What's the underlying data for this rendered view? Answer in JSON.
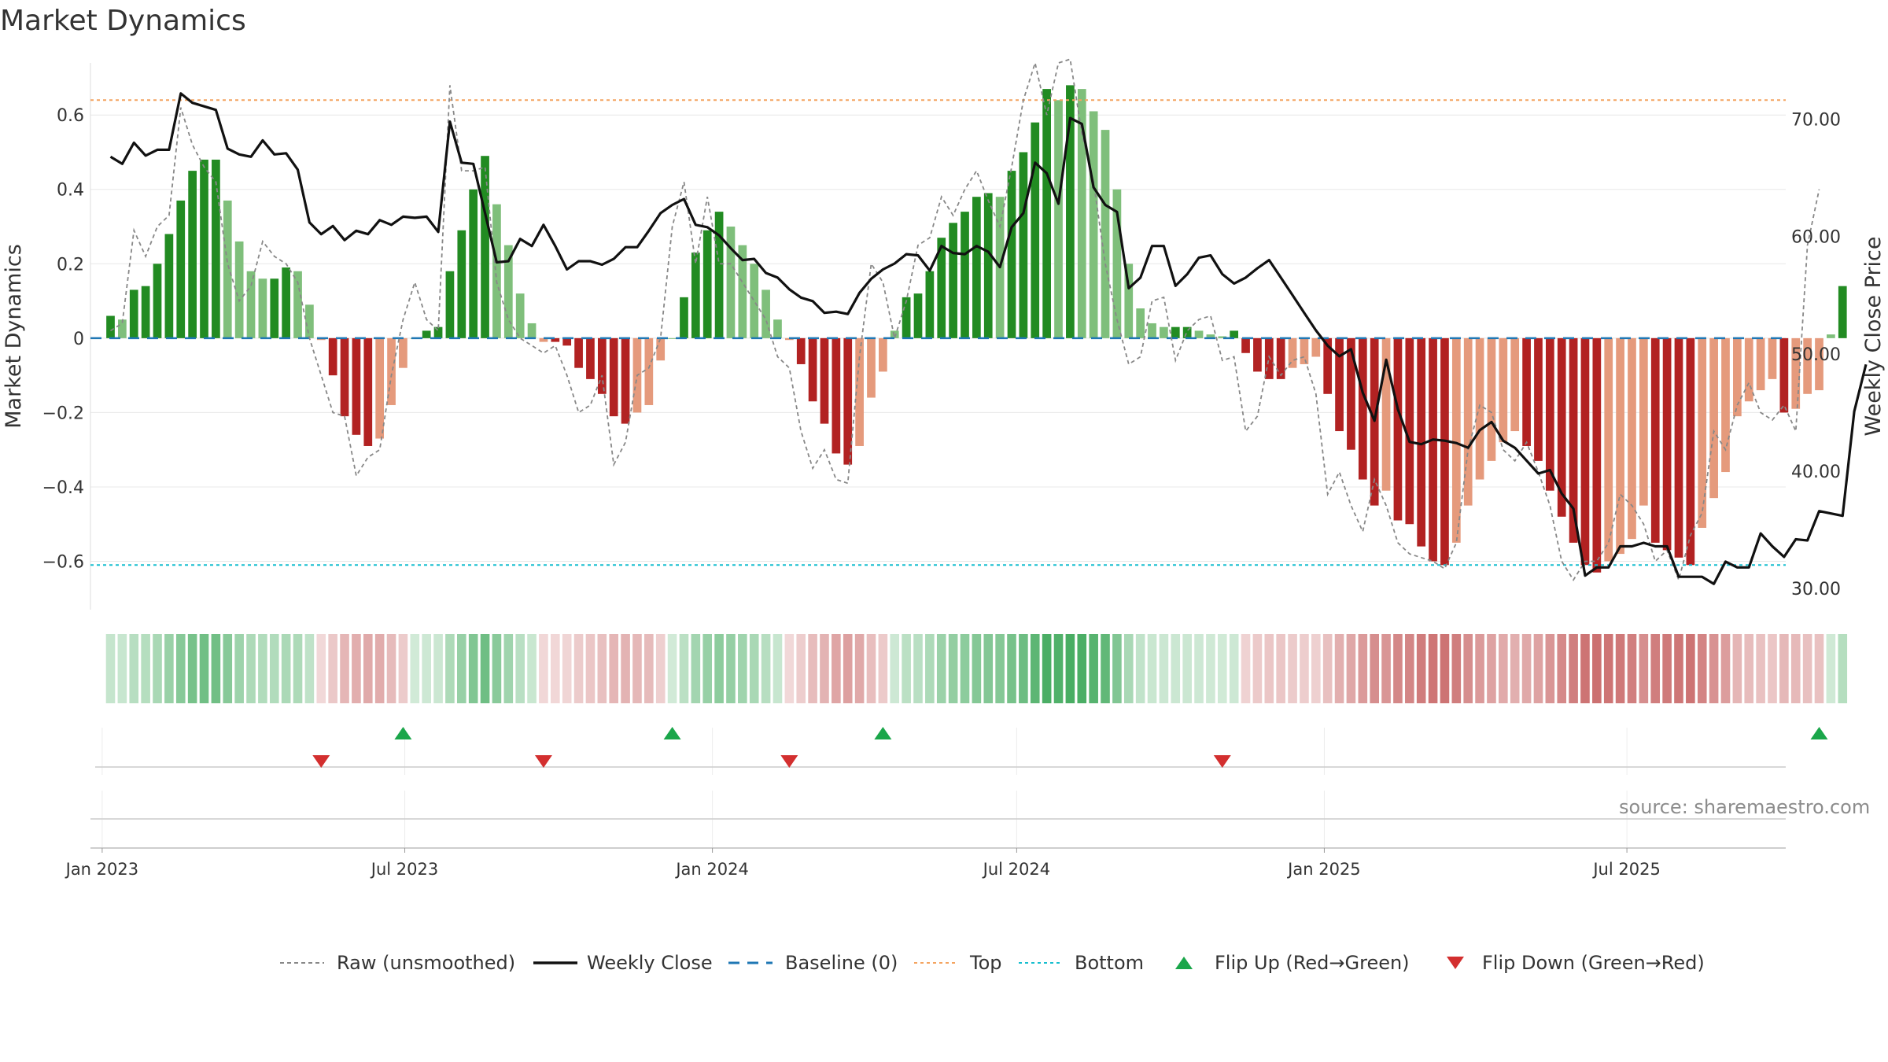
{
  "title": "Market Dynamics",
  "source": "source: sharemaestro.com",
  "colors": {
    "green_dark": "#228b22",
    "green_light": "#7fbf7b",
    "red_dark": "#b22222",
    "red_light": "#e59a7c",
    "close": "#111111",
    "raw": "#888888",
    "baseline": "#1f77b4",
    "top": "#f4a460",
    "bottom": "#17becf",
    "flip_up": "#1aa64a",
    "flip_down": "#d32f2f"
  },
  "chart_data": {
    "type": "bar",
    "x_start": "2023-01-06",
    "x_interval": "weekly",
    "x_range": [
      "2022-12-25",
      "2025-10-04"
    ],
    "x_ticks": [
      {
        "date": "2023-01-01",
        "label": "Jan 2023"
      },
      {
        "date": "2023-07-01",
        "label": "Jul 2023"
      },
      {
        "date": "2024-01-01",
        "label": "Jan 2024"
      },
      {
        "date": "2024-07-01",
        "label": "Jul 2024"
      },
      {
        "date": "2025-01-01",
        "label": "Jan 2025"
      },
      {
        "date": "2025-07-01",
        "label": "Jul 2025"
      }
    ],
    "left_axis": {
      "label": "Market Dynamics",
      "range": [
        -0.73,
        0.74
      ],
      "ticks": [
        {
          "v": 0.6,
          "label": "0.6"
        },
        {
          "v": 0.4,
          "label": "0.4"
        },
        {
          "v": 0.2,
          "label": "0.2"
        },
        {
          "v": 0,
          "label": "0"
        },
        {
          "v": -0.2,
          "label": "−0.2"
        },
        {
          "v": -0.4,
          "label": "−0.4"
        },
        {
          "v": -0.6,
          "label": "−0.6"
        }
      ]
    },
    "right_axis": {
      "label": "Weekly Close Price",
      "range": [
        28.2,
        74.8
      ],
      "ticks": [
        {
          "v": 70,
          "label": "70.00"
        },
        {
          "v": 60,
          "label": "60.00"
        },
        {
          "v": 50,
          "label": "50.00"
        },
        {
          "v": 40,
          "label": "40.00"
        },
        {
          "v": 30,
          "label": "30.00"
        }
      ]
    },
    "top_level": 0.64,
    "bottom_level": -0.61,
    "baseline": 0,
    "grid": true,
    "legend_position": "bottom-center",
    "series": [
      {
        "name": "Market Dynamics",
        "type": "bar",
        "values": [
          0.06,
          0.05,
          0.13,
          0.14,
          0.2,
          0.28,
          0.37,
          0.45,
          0.48,
          0.48,
          0.37,
          0.26,
          0.18,
          0.16,
          0.16,
          0.19,
          0.18,
          0.09,
          -0.005,
          -0.1,
          -0.21,
          -0.26,
          -0.29,
          -0.27,
          -0.18,
          -0.08,
          0.0,
          0.02,
          0.03,
          0.18,
          0.29,
          0.4,
          0.49,
          0.36,
          0.25,
          0.12,
          0.04,
          -0.01,
          -0.01,
          -0.02,
          -0.08,
          -0.11,
          -0.15,
          -0.21,
          -0.23,
          -0.2,
          -0.18,
          -0.06,
          0.0,
          0.11,
          0.23,
          0.29,
          0.34,
          0.3,
          0.25,
          0.2,
          0.13,
          0.05,
          -0.005,
          -0.07,
          -0.17,
          -0.23,
          -0.31,
          -0.34,
          -0.29,
          -0.16,
          -0.09,
          0.02,
          0.11,
          0.12,
          0.18,
          0.27,
          0.31,
          0.34,
          0.38,
          0.39,
          0.38,
          0.45,
          0.5,
          0.58,
          0.67,
          0.64,
          0.68,
          0.67,
          0.61,
          0.56,
          0.4,
          0.2,
          0.08,
          0.04,
          0.03,
          0.03,
          0.03,
          0.02,
          0.01,
          0.005,
          0.02,
          -0.04,
          -0.09,
          -0.11,
          -0.11,
          -0.08,
          -0.07,
          -0.05,
          -0.15,
          -0.25,
          -0.3,
          -0.38,
          -0.45,
          -0.41,
          -0.49,
          -0.5,
          -0.56,
          -0.6,
          -0.61,
          -0.55,
          -0.45,
          -0.38,
          -0.33,
          -0.28,
          -0.25,
          -0.29,
          -0.33,
          -0.41,
          -0.48,
          -0.55,
          -0.61,
          -0.63,
          -0.6,
          -0.58,
          -0.54,
          -0.45,
          -0.55,
          -0.57,
          -0.59,
          -0.61,
          -0.51,
          -0.43,
          -0.36,
          -0.21,
          -0.17,
          -0.14,
          -0.11,
          -0.2,
          -0.19,
          -0.15,
          -0.14,
          0.01,
          0.14
        ]
      },
      {
        "name": "Raw (unsmoothed)",
        "type": "line",
        "values": [
          0.02,
          0.04,
          0.29,
          0.22,
          0.3,
          0.33,
          0.62,
          0.52,
          0.46,
          0.42,
          0.2,
          0.1,
          0.14,
          0.26,
          0.22,
          0.2,
          0.15,
          0.0,
          -0.1,
          -0.2,
          -0.21,
          -0.37,
          -0.32,
          -0.3,
          -0.1,
          0.05,
          0.15,
          0.05,
          0.02,
          0.68,
          0.45,
          0.45,
          0.46,
          0.15,
          0.05,
          0.0,
          -0.02,
          -0.04,
          -0.02,
          -0.1,
          -0.2,
          -0.18,
          -0.1,
          -0.34,
          -0.28,
          -0.1,
          -0.08,
          0.0,
          0.3,
          0.42,
          0.2,
          0.38,
          0.2,
          0.2,
          0.15,
          0.1,
          0.05,
          -0.05,
          -0.08,
          -0.25,
          -0.35,
          -0.3,
          -0.38,
          -0.39,
          -0.05,
          0.2,
          0.15,
          0.0,
          0.1,
          0.25,
          0.27,
          0.38,
          0.33,
          0.4,
          0.45,
          0.37,
          0.3,
          0.46,
          0.64,
          0.74,
          0.6,
          0.74,
          0.75,
          0.55,
          0.42,
          0.2,
          0.05,
          -0.07,
          -0.05,
          0.1,
          0.11,
          -0.06,
          0.02,
          0.05,
          0.06,
          -0.06,
          -0.05,
          -0.25,
          -0.21,
          -0.05,
          -0.1,
          -0.06,
          -0.05,
          -0.15,
          -0.42,
          -0.36,
          -0.45,
          -0.52,
          -0.38,
          -0.45,
          -0.55,
          -0.58,
          -0.59,
          -0.6,
          -0.62,
          -0.55,
          -0.3,
          -0.18,
          -0.2,
          -0.3,
          -0.33,
          -0.28,
          -0.36,
          -0.45,
          -0.6,
          -0.65,
          -0.6,
          -0.6,
          -0.55,
          -0.42,
          -0.45,
          -0.5,
          -0.6,
          -0.57,
          -0.65,
          -0.53,
          -0.47,
          -0.25,
          -0.3,
          -0.18,
          -0.12,
          -0.2,
          -0.22,
          -0.18,
          -0.25,
          0.25,
          0.4
        ]
      },
      {
        "name": "Weekly Close",
        "type": "line",
        "axis": "right",
        "values": [
          66.8,
          66.2,
          68.0,
          66.9,
          67.4,
          67.4,
          72.2,
          71.4,
          71.1,
          70.8,
          67.5,
          67.0,
          66.8,
          68.2,
          67.0,
          67.1,
          65.7,
          61.2,
          60.2,
          60.9,
          59.7,
          60.5,
          60.2,
          61.4,
          61.0,
          61.7,
          61.6,
          61.7,
          60.4,
          69.8,
          66.3,
          66.2,
          62.0,
          57.8,
          57.9,
          59.8,
          59.2,
          61.0,
          59.2,
          57.2,
          57.9,
          57.9,
          57.6,
          58.1,
          59.1,
          59.1,
          60.5,
          62.0,
          62.7,
          63.2,
          61.0,
          60.8,
          60.1,
          59.0,
          58.0,
          58.1,
          56.9,
          56.5,
          55.5,
          54.8,
          54.5,
          53.5,
          53.6,
          53.4,
          55.2,
          56.4,
          57.2,
          57.7,
          58.5,
          58.4,
          57.1,
          59.2,
          58.6,
          58.5,
          59.2,
          58.7,
          57.4,
          60.8,
          62.0,
          66.3,
          65.4,
          62.8,
          70.1,
          69.6,
          64.2,
          62.7,
          62.1,
          55.6,
          56.5,
          59.2,
          59.2,
          55.8,
          56.8,
          58.2,
          58.4,
          56.8,
          56.0,
          56.5,
          57.3,
          58.0,
          56.5,
          55.0,
          53.5,
          52.0,
          50.7,
          49.8,
          50.4,
          46.7,
          44.3,
          49.5,
          45.3,
          42.5,
          42.3,
          42.7,
          42.6,
          42.4,
          42.0,
          43.5,
          44.2,
          42.6,
          42.0,
          40.9,
          39.8,
          40.1,
          38.1,
          36.8,
          31.1,
          31.8,
          31.8,
          33.6,
          33.6,
          33.9,
          33.6,
          33.6,
          31.0,
          31.0,
          31.0,
          30.4,
          32.3,
          31.8,
          31.8,
          34.7,
          33.6,
          32.7,
          34.2,
          34.1,
          36.6,
          36.4,
          36.2,
          45.1,
          49.1
        ]
      },
      {
        "name": "Flip Up (Red→Green)",
        "type": "scatter",
        "indices": [
          25,
          48,
          66,
          146
        ]
      },
      {
        "name": "Flip Down (Green→Red)",
        "type": "scatter",
        "indices": [
          18,
          37,
          58,
          95
        ]
      },
      {
        "name": "Heat strip",
        "type": "heatmap",
        "values": "same as Market Dynamics"
      }
    ]
  },
  "legend": [
    {
      "key": "raw",
      "label": "Raw (unsmoothed)",
      "icon": "dashed-gray-line"
    },
    {
      "key": "close",
      "label": "Weekly Close",
      "icon": "solid-black-line"
    },
    {
      "key": "baseline",
      "label": "Baseline (0)",
      "icon": "dashed-blue-line"
    },
    {
      "key": "top",
      "label": "Top",
      "icon": "dotted-orange-line"
    },
    {
      "key": "bottom",
      "label": "Bottom",
      "icon": "dotted-cyan-line"
    },
    {
      "key": "flip_up",
      "label": "Flip Up (Red→Green)",
      "icon": "triangle-up"
    },
    {
      "key": "flip_down",
      "label": "Flip Down (Green→Red)",
      "icon": "triangle-down"
    }
  ]
}
